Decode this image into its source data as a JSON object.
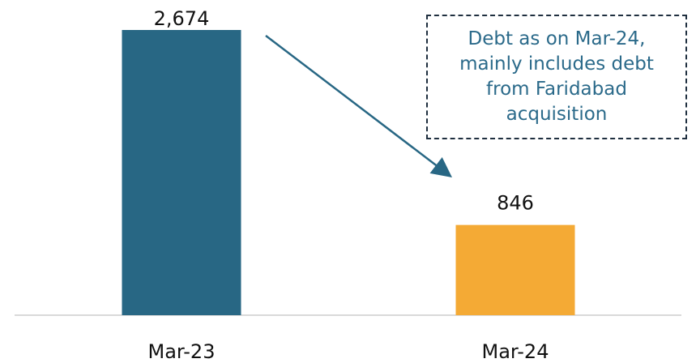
{
  "chart_data": {
    "type": "bar",
    "categories": [
      "Mar-23",
      "Mar-24"
    ],
    "values": [
      2674,
      846
    ],
    "data_labels": [
      "2,674",
      "846"
    ],
    "bar_colors": [
      "#286784",
      "#f4aa35"
    ],
    "title": "",
    "xlabel": "",
    "ylabel": "",
    "ylim": [
      0,
      2674
    ],
    "grid": false,
    "legend": "none",
    "annotation": {
      "text": "Debt as on Mar-24,\nmainly includes debt\nfrom Faridabad\nacquisition",
      "text_color": "#2b6a8a",
      "border_color": "#1f2f3f",
      "arrow_color": "#286784"
    }
  }
}
